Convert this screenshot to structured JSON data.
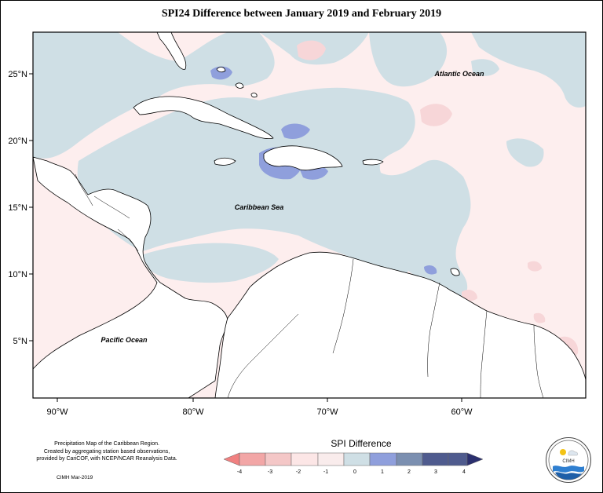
{
  "title": "SPI24 Difference between January 2019 and February 2019",
  "map": {
    "lat_ticks": [
      "25°N",
      "20°N",
      "15°N",
      "10°N",
      "5°N"
    ],
    "lon_ticks": [
      "90°W",
      "80°W",
      "70°W",
      "60°W"
    ],
    "labels": {
      "atlantic": "Atlantic Ocean",
      "caribbean": "Caribbean Sea",
      "pacific": "Pacific Ocean"
    }
  },
  "legend": {
    "title": "SPI Difference",
    "ticks": [
      "-4",
      "-3",
      "-2",
      "-1",
      "0",
      "1",
      "2",
      "3",
      "4"
    ],
    "colors": [
      "#f08080",
      "#f2a6a6",
      "#f4c7c7",
      "#fce6e6",
      "#f9ecec",
      "#cfdfe5",
      "#8f9fdc",
      "#7b8fb0",
      "#4f5b8e",
      "#2b2f6e"
    ]
  },
  "credits": {
    "line1": "Precipitation Map of the Caribbean Region.",
    "line2": "Created by aggregating station based observations,",
    "line3": "provided by CariCOF, with NCEP/NCAR Reanalysis Data.",
    "footnote": "CIMH Mar-2019"
  },
  "logo": {
    "text": "CIMH"
  }
}
